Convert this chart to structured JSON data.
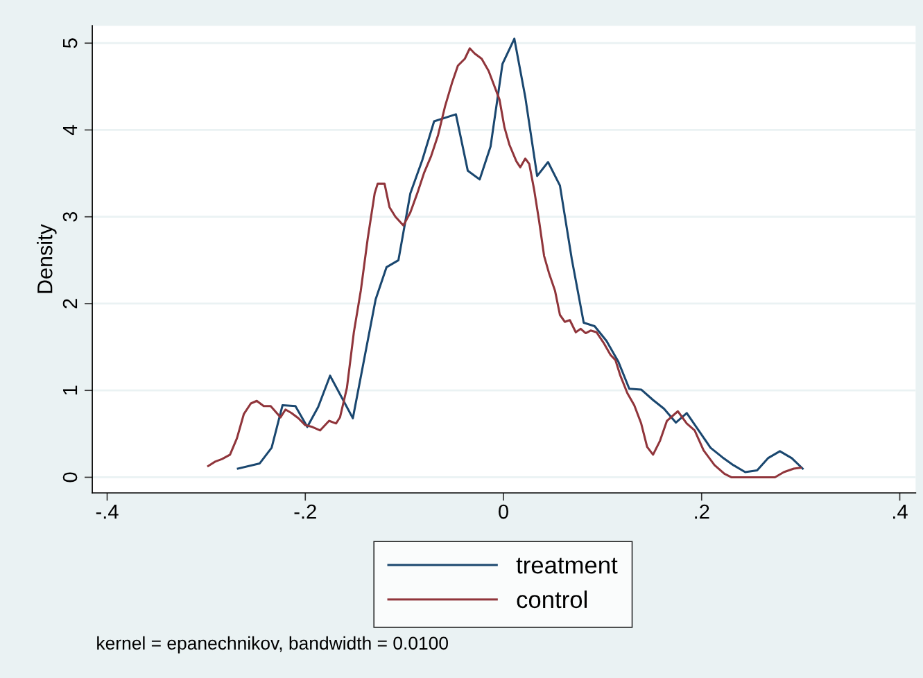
{
  "chart_data": {
    "type": "line",
    "ylabel": "Density",
    "xlim": [
      -0.415,
      0.416
    ],
    "ylim": [
      -0.18,
      5.2
    ],
    "xticks": [
      {
        "value": -0.4,
        "label": "-.4"
      },
      {
        "value": -0.2,
        "label": "-.2"
      },
      0,
      {
        "value": 0.2,
        "label": ".2"
      },
      {
        "value": 0.4,
        "label": ".4"
      }
    ],
    "yticks": [
      0,
      1,
      2,
      3,
      4,
      5
    ],
    "grid": "y",
    "legend": "bottom",
    "marker": "none",
    "line_style": "solid",
    "annotations": [
      "kernel = epanechnikov, bandwidth = 0.0100"
    ],
    "series": [
      {
        "name": "treatment",
        "color": "#1a476f",
        "x": [
          -0.268,
          -0.246,
          -0.234,
          -0.223,
          -0.21,
          -0.198,
          -0.187,
          -0.175,
          -0.152,
          -0.129,
          -0.118,
          -0.106,
          -0.094,
          -0.082,
          -0.07,
          -0.048,
          -0.036,
          -0.024,
          -0.013,
          -0.001,
          0.011,
          0.022,
          0.034,
          0.045,
          0.057,
          0.069,
          0.081,
          0.092,
          0.104,
          0.116,
          0.127,
          0.139,
          0.151,
          0.162,
          0.174,
          0.185,
          0.197,
          0.209,
          0.221,
          0.232,
          0.244,
          0.256,
          0.267,
          0.279,
          0.291,
          0.302
        ],
        "values": [
          0.1,
          0.16,
          0.34,
          0.83,
          0.82,
          0.58,
          0.81,
          1.17,
          0.68,
          2.05,
          2.42,
          2.5,
          3.27,
          3.65,
          4.1,
          4.18,
          3.53,
          3.43,
          3.81,
          4.76,
          5.05,
          4.38,
          3.47,
          3.63,
          3.36,
          2.51,
          1.78,
          1.74,
          1.57,
          1.33,
          1.02,
          1.01,
          0.89,
          0.79,
          0.63,
          0.74,
          0.54,
          0.34,
          0.23,
          0.14,
          0.06,
          0.08,
          0.22,
          0.3,
          0.22,
          0.1
        ]
      },
      {
        "name": "control",
        "color": "#90353b",
        "x": [
          -0.298,
          -0.291,
          -0.284,
          -0.276,
          -0.269,
          -0.262,
          -0.255,
          -0.249,
          -0.242,
          -0.235,
          -0.225,
          -0.22,
          -0.214,
          -0.207,
          -0.2,
          -0.193,
          -0.185,
          -0.176,
          -0.169,
          -0.165,
          -0.158,
          -0.151,
          -0.144,
          -0.137,
          -0.13,
          -0.127,
          -0.12,
          -0.115,
          -0.109,
          -0.101,
          -0.094,
          -0.087,
          -0.08,
          -0.073,
          -0.066,
          -0.059,
          -0.052,
          -0.046,
          -0.039,
          -0.034,
          -0.029,
          -0.022,
          -0.015,
          -0.01,
          -0.004,
          0.001,
          0.006,
          0.013,
          0.017,
          0.022,
          0.026,
          0.031,
          0.036,
          0.041,
          0.046,
          0.052,
          0.057,
          0.062,
          0.067,
          0.073,
          0.078,
          0.083,
          0.088,
          0.094,
          0.101,
          0.108,
          0.113,
          0.118,
          0.125,
          0.132,
          0.139,
          0.145,
          0.151,
          0.158,
          0.165,
          0.176,
          0.185,
          0.193,
          0.202,
          0.213,
          0.223,
          0.23,
          0.274,
          0.283,
          0.293,
          0.3
        ],
        "values": [
          0.13,
          0.18,
          0.21,
          0.26,
          0.45,
          0.73,
          0.85,
          0.88,
          0.82,
          0.82,
          0.69,
          0.78,
          0.74,
          0.68,
          0.6,
          0.58,
          0.54,
          0.65,
          0.62,
          0.69,
          1.03,
          1.67,
          2.15,
          2.75,
          3.27,
          3.38,
          3.38,
          3.11,
          3.0,
          2.9,
          3.05,
          3.27,
          3.51,
          3.7,
          3.94,
          4.27,
          4.54,
          4.74,
          4.82,
          4.94,
          4.88,
          4.82,
          4.68,
          4.53,
          4.35,
          4.03,
          3.83,
          3.64,
          3.57,
          3.67,
          3.61,
          3.31,
          2.95,
          2.55,
          2.35,
          2.15,
          1.87,
          1.79,
          1.81,
          1.67,
          1.71,
          1.66,
          1.69,
          1.67,
          1.55,
          1.41,
          1.35,
          1.17,
          0.97,
          0.83,
          0.62,
          0.35,
          0.26,
          0.42,
          0.65,
          0.76,
          0.62,
          0.54,
          0.31,
          0.14,
          0.04,
          0.0,
          0.0,
          0.06,
          0.1,
          0.11
        ]
      }
    ]
  }
}
